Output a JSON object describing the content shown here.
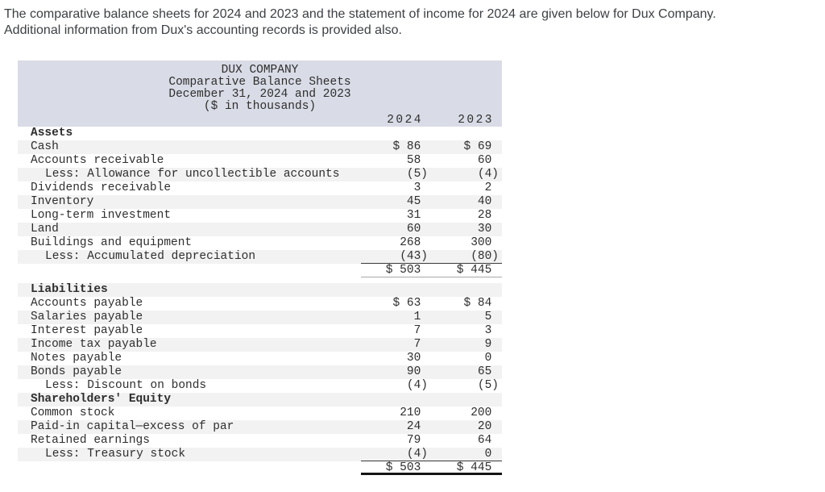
{
  "intro": {
    "line1": "The comparative balance sheets for 2024 and 2023 and the statement of income for 2024 are given below for Dux Company.",
    "line2": "Additional information from Dux's accounting records is provided also."
  },
  "balance_sheet": {
    "title_lines": [
      "DUX COMPANY",
      "Comparative Balance Sheets",
      "December 31, 2024 and 2023",
      "($ in thousands)"
    ],
    "column_headers": {
      "col_2024": "2024",
      "col_2023": "2023"
    },
    "rows": [
      {
        "label": "Assets",
        "bold": true,
        "stripe": false,
        "v2024": "",
        "v2023": ""
      },
      {
        "label": "Cash",
        "stripe": true,
        "v2024": "$ 86 ",
        "v2023": "$ 69 "
      },
      {
        "label": "Accounts receivable",
        "stripe": false,
        "v2024": "58 ",
        "v2023": "60 "
      },
      {
        "label": "Less: Allowance for uncollectible accounts",
        "indent": true,
        "stripe": true,
        "v2024": "(5)",
        "v2023": "(4)"
      },
      {
        "label": "Dividends receivable",
        "stripe": false,
        "v2024": "3 ",
        "v2023": "2 "
      },
      {
        "label": "Inventory",
        "stripe": true,
        "v2024": "45 ",
        "v2023": "40 "
      },
      {
        "label": "Long-term investment",
        "stripe": false,
        "v2024": "31 ",
        "v2023": "28 "
      },
      {
        "label": "Land",
        "stripe": true,
        "v2024": "60 ",
        "v2023": "30 "
      },
      {
        "label": "Buildings and equipment",
        "stripe": false,
        "v2024": "268 ",
        "v2023": "300 "
      },
      {
        "label": "Less: Accumulated depreciation",
        "indent": true,
        "stripe": true,
        "v2024": "(43)",
        "v2023": "(80)",
        "border": "sum"
      },
      {
        "label": "",
        "stripe": false,
        "v2024": "$ 503 ",
        "v2023": "$ 445 ",
        "border": "light"
      },
      {
        "spacer": true
      },
      {
        "label": "Liabilities",
        "bold": true,
        "stripe": true,
        "v2024": "",
        "v2023": ""
      },
      {
        "label": "Accounts payable",
        "stripe": false,
        "v2024": "$ 63 ",
        "v2023": "$ 84 "
      },
      {
        "label": "Salaries payable",
        "stripe": true,
        "v2024": "1 ",
        "v2023": "5 "
      },
      {
        "label": "Interest payable",
        "stripe": false,
        "v2024": "7 ",
        "v2023": "3 "
      },
      {
        "label": "Income tax payable",
        "stripe": true,
        "v2024": "7 ",
        "v2023": "9 "
      },
      {
        "label": "Notes payable",
        "stripe": false,
        "v2024": "30 ",
        "v2023": "0 "
      },
      {
        "label": "Bonds payable",
        "stripe": true,
        "v2024": "90 ",
        "v2023": "65 "
      },
      {
        "label": "Less: Discount on bonds",
        "indent": true,
        "stripe": false,
        "v2024": "(4)",
        "v2023": "(5)"
      },
      {
        "label": "Shareholders' Equity",
        "bold": true,
        "stripe": true,
        "v2024": "",
        "v2023": ""
      },
      {
        "label": "Common stock",
        "stripe": false,
        "v2024": "210 ",
        "v2023": "200 "
      },
      {
        "label": "Paid-in capital—excess of par",
        "stripe": true,
        "v2024": "24 ",
        "v2023": "20 "
      },
      {
        "label": "Retained earnings",
        "stripe": false,
        "v2024": "79 ",
        "v2023": "64 "
      },
      {
        "label": "Less: Treasury stock",
        "indent": true,
        "stripe": true,
        "v2024": "(4)",
        "v2023": "0 ",
        "border": "sum"
      },
      {
        "label": "",
        "stripe": false,
        "v2024": "$ 503 ",
        "v2023": "$ 445 ",
        "border": "final"
      }
    ]
  },
  "colors": {
    "header_bg": "#d9dce6",
    "stripe": "#f2f2f2",
    "table_text": "#2e2e2e",
    "intro_text": "#3d4043",
    "sum_line": "#3a3a3a",
    "section_line": "#a9a9a9",
    "final_line": "#141414"
  }
}
